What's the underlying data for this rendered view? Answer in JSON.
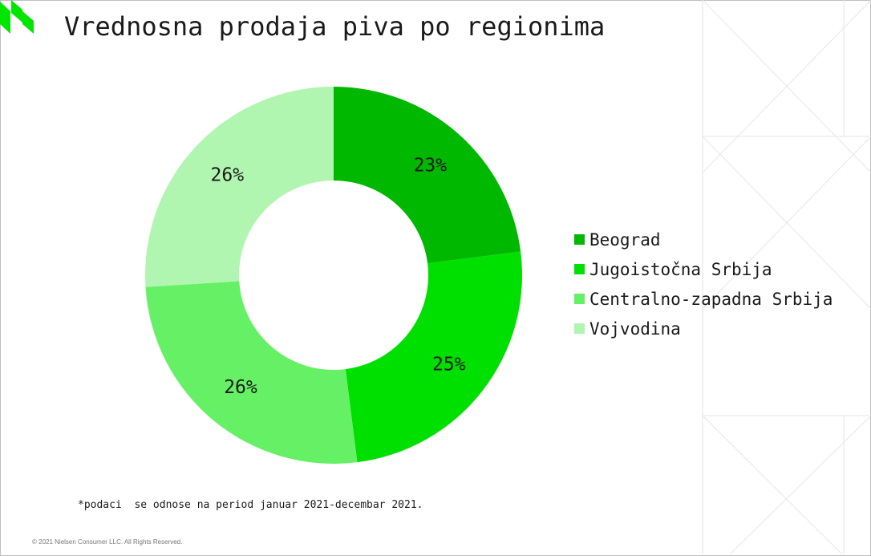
{
  "title": "Vrednosna prodaja piva po regionima",
  "footnote": "*podaci  se odnose na period januar 2021-decembar 2021.",
  "copyright": "© 2021 Nielsen Consumer LLC. All Rights Reserved.",
  "colors": {
    "logo": "#00e600",
    "background_lines": "#e6e6e6"
  },
  "chart_data": {
    "type": "pie",
    "variant": "donut",
    "title": "Vrednosna prodaja piva po regionima",
    "categories": [
      "Beograd",
      "Jugoistočna Srbija",
      "Centralno-zapadna Srbija",
      "Vojvodina"
    ],
    "values": [
      23,
      25,
      26,
      26
    ],
    "labels": [
      "23%",
      "25%",
      "26%",
      "26%"
    ],
    "colors": [
      "#00b800",
      "#00e000",
      "#66f066",
      "#b0f5b0"
    ],
    "legend_position": "right"
  }
}
